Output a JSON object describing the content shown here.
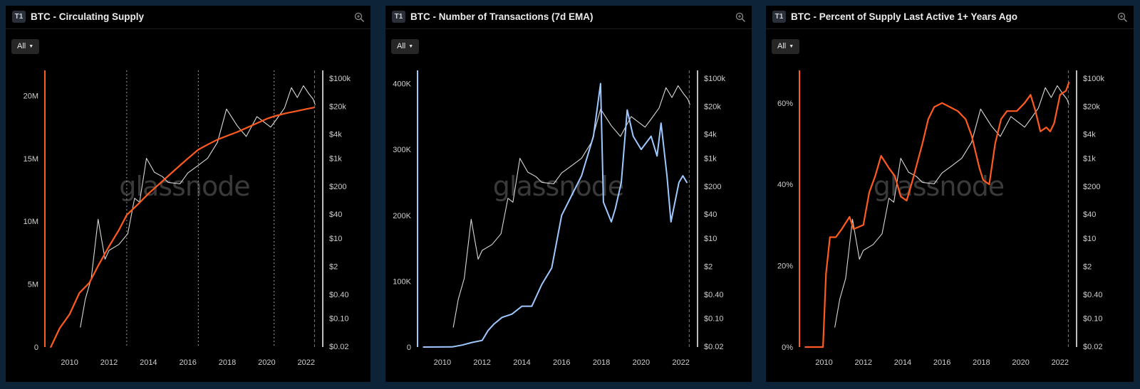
{
  "panels": [
    {
      "badge": "T1",
      "title": "BTC - Circulating Supply",
      "range_label": "All",
      "watermark": "glassnode",
      "chart_data": {
        "type": "line",
        "title": "BTC - Circulating Supply",
        "x_ticks": [
          "2010",
          "2012",
          "2014",
          "2016",
          "2018",
          "2020",
          "2022"
        ],
        "y_left_ticks": [
          "0",
          "5M",
          "10M",
          "15M",
          "20M"
        ],
        "y_left_range": [
          0,
          22000000
        ],
        "y_right_ticks": [
          "$0.02",
          "$0.10",
          "$0.40",
          "$2",
          "$10",
          "$40",
          "$200",
          "$1k",
          "$4k",
          "$20k",
          "$100k"
        ],
        "y_right_scale": "log",
        "halving_markers": [
          2012.9,
          2016.53,
          2020.37
        ],
        "grid": false,
        "series": [
          {
            "color": "#ff5a1f",
            "axis": "left",
            "values": [
              [
                2009.05,
                0
              ],
              [
                2009.5,
                1500000
              ],
              [
                2010.0,
                2600000
              ],
              [
                2010.5,
                4300000
              ],
              [
                2011.0,
                5100000
              ],
              [
                2011.5,
                6600000
              ],
              [
                2012.0,
                8000000
              ],
              [
                2012.5,
                9300000
              ],
              [
                2012.9,
                10500000
              ],
              [
                2013.5,
                11400000
              ],
              [
                2014.0,
                12200000
              ],
              [
                2014.5,
                12900000
              ],
              [
                2015.0,
                13600000
              ],
              [
                2015.5,
                14300000
              ],
              [
                2016.0,
                15000000
              ],
              [
                2016.53,
                15700000
              ],
              [
                2017.0,
                16100000
              ],
              [
                2017.5,
                16500000
              ],
              [
                2018.0,
                16800000
              ],
              [
                2018.5,
                17100000
              ],
              [
                2019.0,
                17450000
              ],
              [
                2019.5,
                17800000
              ],
              [
                2020.0,
                18150000
              ],
              [
                2020.37,
                18350000
              ],
              [
                2021.0,
                18600000
              ],
              [
                2021.5,
                18760000
              ],
              [
                2022.0,
                18930000
              ],
              [
                2022.4,
                19050000
              ]
            ]
          },
          {
            "color": "#d8d8d8",
            "axis": "right",
            "values": [
              [
                2010.55,
                0.06
              ],
              [
                2010.8,
                0.3
              ],
              [
                2011.1,
                1
              ],
              [
                2011.45,
                30
              ],
              [
                2011.8,
                3
              ],
              [
                2012.0,
                5
              ],
              [
                2012.5,
                7
              ],
              [
                2012.95,
                13
              ],
              [
                2013.3,
                100
              ],
              [
                2013.55,
                80
              ],
              [
                2013.9,
                1000
              ],
              [
                2014.3,
                450
              ],
              [
                2014.7,
                350
              ],
              [
                2015.0,
                250
              ],
              [
                2015.6,
                230
              ],
              [
                2016.0,
                430
              ],
              [
                2016.5,
                650
              ],
              [
                2017.0,
                1000
              ],
              [
                2017.5,
                2500
              ],
              [
                2017.96,
                17000
              ],
              [
                2018.5,
                6500
              ],
              [
                2018.96,
                3500
              ],
              [
                2019.5,
                11000
              ],
              [
                2020.2,
                6000
              ],
              [
                2020.5,
                9500
              ],
              [
                2020.9,
                18000
              ],
              [
                2021.25,
                58000
              ],
              [
                2021.55,
                33000
              ],
              [
                2021.86,
                65000
              ],
              [
                2022.15,
                40000
              ],
              [
                2022.35,
                30000
              ],
              [
                2022.45,
                22000
              ]
            ]
          }
        ]
      }
    },
    {
      "badge": "T1",
      "title": "BTC - Number of Transactions (7d EMA)",
      "range_label": "All",
      "watermark": "glassnode",
      "chart_data": {
        "type": "line",
        "title": "BTC - Number of Transactions (7d EMA)",
        "x_ticks": [
          "2010",
          "2012",
          "2014",
          "2016",
          "2018",
          "2020",
          "2022"
        ],
        "y_left_ticks": [
          "0",
          "100K",
          "200K",
          "300K",
          "400K"
        ],
        "y_left_range": [
          0,
          420000
        ],
        "y_right_ticks": [
          "$0.02",
          "$0.10",
          "$0.40",
          "$2",
          "$10",
          "$40",
          "$200",
          "$1k",
          "$4k",
          "$20k",
          "$100k"
        ],
        "y_right_scale": "log",
        "grid": false,
        "series": [
          {
            "color": "#9fc8ff",
            "axis": "left",
            "values": [
              [
                2009.05,
                0
              ],
              [
                2010.5,
                200
              ],
              [
                2011.0,
                3000
              ],
              [
                2011.5,
                7000
              ],
              [
                2012.0,
                10000
              ],
              [
                2012.3,
                25000
              ],
              [
                2012.6,
                35000
              ],
              [
                2013.0,
                45000
              ],
              [
                2013.5,
                50000
              ],
              [
                2014.0,
                62000
              ],
              [
                2014.5,
                62000
              ],
              [
                2015.0,
                95000
              ],
              [
                2015.5,
                120000
              ],
              [
                2016.0,
                200000
              ],
              [
                2016.5,
                230000
              ],
              [
                2017.0,
                260000
              ],
              [
                2017.6,
                320000
              ],
              [
                2017.96,
                400000
              ],
              [
                2018.1,
                220000
              ],
              [
                2018.5,
                190000
              ],
              [
                2018.7,
                210000
              ],
              [
                2019.0,
                250000
              ],
              [
                2019.3,
                360000
              ],
              [
                2019.6,
                320000
              ],
              [
                2020.0,
                300000
              ],
              [
                2020.5,
                320000
              ],
              [
                2020.8,
                290000
              ],
              [
                2021.0,
                340000
              ],
              [
                2021.3,
                260000
              ],
              [
                2021.5,
                190000
              ],
              [
                2021.9,
                250000
              ],
              [
                2022.1,
                260000
              ],
              [
                2022.3,
                250000
              ]
            ]
          },
          {
            "color": "#d8d8d8",
            "axis": "right",
            "values": [
              [
                2010.55,
                0.06
              ],
              [
                2010.8,
                0.3
              ],
              [
                2011.1,
                1
              ],
              [
                2011.45,
                30
              ],
              [
                2011.8,
                3
              ],
              [
                2012.0,
                5
              ],
              [
                2012.5,
                7
              ],
              [
                2012.95,
                13
              ],
              [
                2013.3,
                100
              ],
              [
                2013.55,
                80
              ],
              [
                2013.9,
                1000
              ],
              [
                2014.3,
                450
              ],
              [
                2014.7,
                350
              ],
              [
                2015.0,
                250
              ],
              [
                2015.6,
                230
              ],
              [
                2016.0,
                430
              ],
              [
                2016.5,
                650
              ],
              [
                2017.0,
                1000
              ],
              [
                2017.5,
                2500
              ],
              [
                2017.96,
                17000
              ],
              [
                2018.5,
                6500
              ],
              [
                2018.96,
                3500
              ],
              [
                2019.5,
                11000
              ],
              [
                2020.2,
                6000
              ],
              [
                2020.5,
                9500
              ],
              [
                2020.9,
                18000
              ],
              [
                2021.25,
                58000
              ],
              [
                2021.55,
                33000
              ],
              [
                2021.86,
                65000
              ],
              [
                2022.15,
                40000
              ],
              [
                2022.35,
                30000
              ],
              [
                2022.45,
                22000
              ]
            ]
          }
        ]
      }
    },
    {
      "badge": "T1",
      "title": "BTC - Percent of Supply Last Active 1+ Years Ago",
      "range_label": "All",
      "watermark": "glassnode",
      "chart_data": {
        "type": "line",
        "title": "BTC - Percent of Supply Last Active 1+ Years Ago",
        "x_ticks": [
          "2010",
          "2012",
          "2014",
          "2016",
          "2018",
          "2020",
          "2022"
        ],
        "y_left_ticks": [
          "0%",
          "20%",
          "40%",
          "60%"
        ],
        "y_left_range": [
          0,
          68
        ],
        "y_right_ticks": [
          "$0.02",
          "$0.10",
          "$0.40",
          "$2",
          "$10",
          "$40",
          "$200",
          "$1k",
          "$4k",
          "$20k",
          "$100k"
        ],
        "y_right_scale": "log",
        "grid": false,
        "series": [
          {
            "color": "#ff5a1f",
            "axis": "left",
            "values": [
              [
                2009.05,
                0
              ],
              [
                2009.95,
                0
              ],
              [
                2010.1,
                18
              ],
              [
                2010.3,
                27
              ],
              [
                2010.6,
                27
              ],
              [
                2010.9,
                29
              ],
              [
                2011.3,
                32
              ],
              [
                2011.5,
                29
              ],
              [
                2012.0,
                30
              ],
              [
                2012.3,
                38
              ],
              [
                2012.6,
                42
              ],
              [
                2012.9,
                47
              ],
              [
                2013.3,
                44
              ],
              [
                2013.6,
                42
              ],
              [
                2013.9,
                37
              ],
              [
                2014.2,
                36
              ],
              [
                2014.5,
                41
              ],
              [
                2015.0,
                50
              ],
              [
                2015.3,
                56
              ],
              [
                2015.6,
                59
              ],
              [
                2016.0,
                60
              ],
              [
                2016.4,
                59
              ],
              [
                2016.8,
                58
              ],
              [
                2017.2,
                56
              ],
              [
                2017.5,
                52
              ],
              [
                2017.9,
                44
              ],
              [
                2018.1,
                41
              ],
              [
                2018.4,
                40
              ],
              [
                2018.7,
                50
              ],
              [
                2019.0,
                56
              ],
              [
                2019.3,
                58
              ],
              [
                2019.8,
                58
              ],
              [
                2020.2,
                60
              ],
              [
                2020.5,
                62
              ],
              [
                2020.75,
                58
              ],
              [
                2021.0,
                53
              ],
              [
                2021.3,
                54
              ],
              [
                2021.5,
                53
              ],
              [
                2021.7,
                55
              ],
              [
                2022.0,
                62
              ],
              [
                2022.3,
                63
              ],
              [
                2022.45,
                65
              ]
            ]
          },
          {
            "color": "#d8d8d8",
            "axis": "right",
            "values": [
              [
                2010.55,
                0.06
              ],
              [
                2010.8,
                0.3
              ],
              [
                2011.1,
                1
              ],
              [
                2011.45,
                30
              ],
              [
                2011.8,
                3
              ],
              [
                2012.0,
                5
              ],
              [
                2012.5,
                7
              ],
              [
                2012.95,
                13
              ],
              [
                2013.3,
                100
              ],
              [
                2013.55,
                80
              ],
              [
                2013.9,
                1000
              ],
              [
                2014.3,
                450
              ],
              [
                2014.7,
                350
              ],
              [
                2015.0,
                250
              ],
              [
                2015.6,
                230
              ],
              [
                2016.0,
                430
              ],
              [
                2016.5,
                650
              ],
              [
                2017.0,
                1000
              ],
              [
                2017.5,
                2500
              ],
              [
                2017.96,
                17000
              ],
              [
                2018.5,
                6500
              ],
              [
                2018.96,
                3500
              ],
              [
                2019.5,
                11000
              ],
              [
                2020.2,
                6000
              ],
              [
                2020.5,
                9500
              ],
              [
                2020.9,
                18000
              ],
              [
                2021.25,
                58000
              ],
              [
                2021.55,
                33000
              ],
              [
                2021.86,
                65000
              ],
              [
                2022.15,
                40000
              ],
              [
                2022.35,
                30000
              ],
              [
                2022.45,
                22000
              ]
            ]
          }
        ]
      }
    }
  ]
}
